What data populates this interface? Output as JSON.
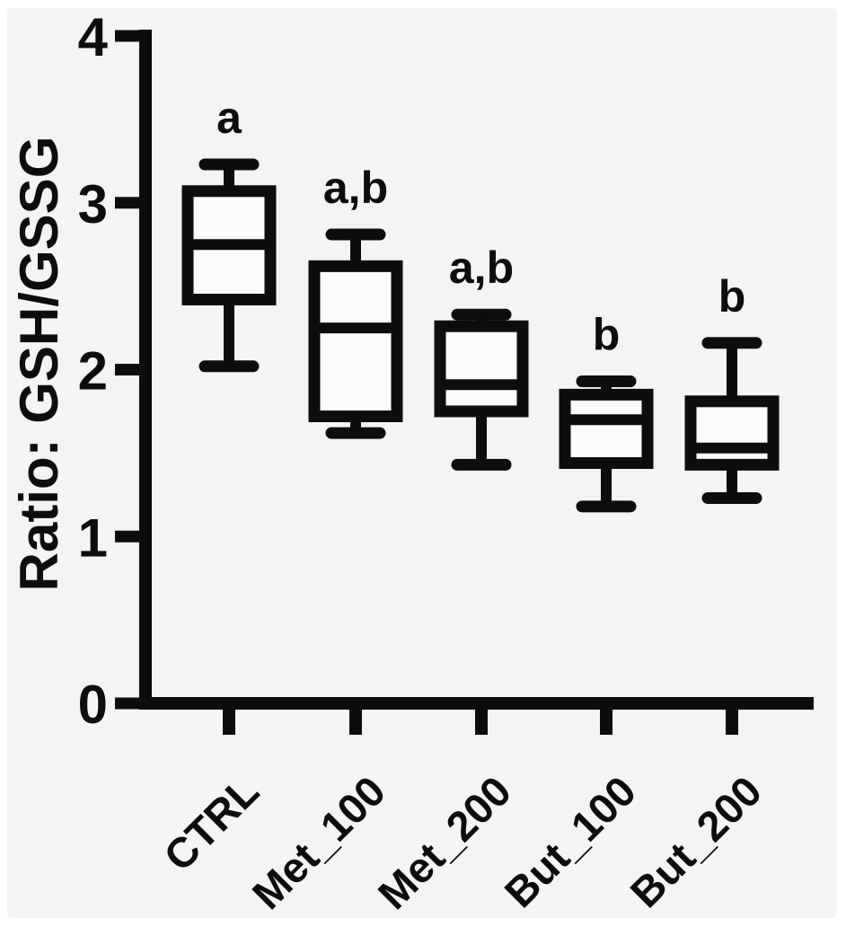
{
  "figure": {
    "background": "#f3f4f6",
    "ink": "#0d0d0d",
    "box_fill": "#fcfcfd"
  },
  "chart_data": {
    "type": "box",
    "title": "",
    "ylabel": "Ratio: GSH/GSSG",
    "xlabel": "",
    "ylim": [
      0,
      4
    ],
    "yticks": [
      "0",
      "1",
      "2",
      "3",
      "4"
    ],
    "grid": false,
    "legend": false,
    "categories": [
      "CTRL",
      "Met_100",
      "Met_200",
      "But_100",
      "But_200"
    ],
    "boxes": [
      {
        "category": "CTRL",
        "whisker_low": 2.02,
        "q1": 2.42,
        "median": 2.75,
        "q3": 3.07,
        "whisker_high": 3.23,
        "annotation": "a"
      },
      {
        "category": "Met_100",
        "whisker_low": 1.62,
        "q1": 1.72,
        "median": 2.25,
        "q3": 2.62,
        "whisker_high": 2.81,
        "annotation": "a,b"
      },
      {
        "category": "Met_200",
        "whisker_low": 1.43,
        "q1": 1.75,
        "median": 1.91,
        "q3": 2.26,
        "whisker_high": 2.33,
        "annotation": "a,b"
      },
      {
        "category": "But_100",
        "whisker_low": 1.18,
        "q1": 1.44,
        "median": 1.7,
        "q3": 1.85,
        "whisker_high": 1.93,
        "annotation": "b"
      },
      {
        "category": "But_200",
        "whisker_low": 1.23,
        "q1": 1.43,
        "median": 1.53,
        "q3": 1.81,
        "whisker_high": 2.16,
        "annotation": "b"
      }
    ]
  }
}
